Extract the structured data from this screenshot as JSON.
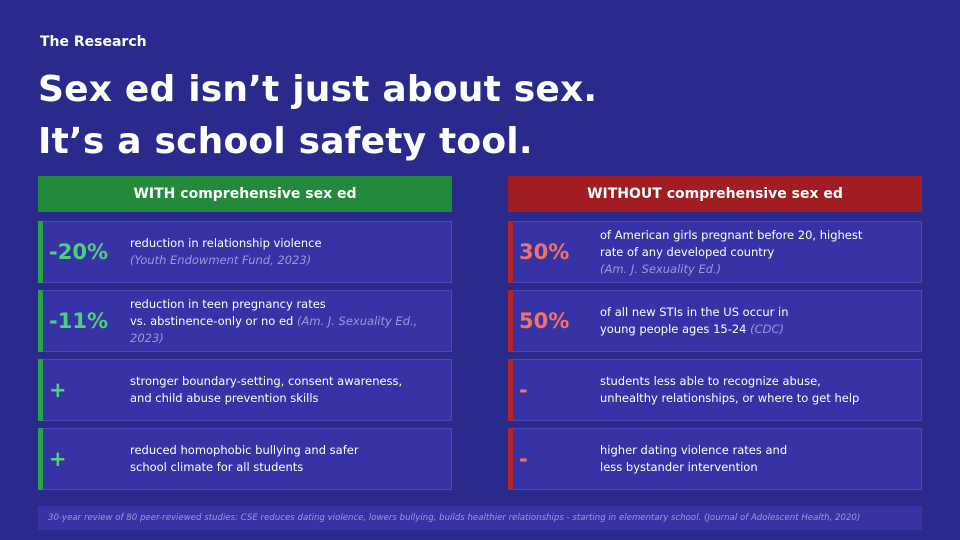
{
  "eyebrow": "The Research",
  "headline": {
    "line1": "Sex ed isn’t just about sex.",
    "line2": "It’s a school safety tool."
  },
  "with": {
    "header": "WITH comprehensive sex ed",
    "cards": [
      {
        "stat": "-20%",
        "line1": "reduction in relationship violence",
        "cite1": "(Youth Endowment Fund, 2023)"
      },
      {
        "stat": "-11%",
        "line1": "reduction in teen pregnancy rates",
        "line2": "vs. abstinence-only or no ed ",
        "cite2": "(Am. J. Sexuality Ed.,",
        "cite3": "2023)"
      },
      {
        "stat": "+",
        "line1": "stronger boundary-setting, consent awareness,",
        "line2": "and child abuse prevention skills"
      },
      {
        "stat": "+",
        "line1": "reduced homophobic bullying and safer",
        "line2": "school climate for all students"
      }
    ]
  },
  "without": {
    "header": "WITHOUT comprehensive sex ed",
    "cards": [
      {
        "stat": "30%",
        "line1": "of American girls pregnant before 20, highest",
        "line2": "rate of any developed country",
        "cite3": "(Am. J. Sexuality Ed.)"
      },
      {
        "stat": "50%",
        "line1": "of all new STIs in the US occur in",
        "line2": "young people ages 15-24 ",
        "cite2": "(CDC)"
      },
      {
        "stat": "-",
        "line1": "students less able to recognize abuse,",
        "line2": "unhealthy relationships, or where to get help"
      },
      {
        "stat": "-",
        "line1": "higher dating violence rates and",
        "line2": "less bystander intervention"
      }
    ]
  },
  "footnote": "30-year review of 80 peer-reviewed studies: CSE reduces dating violence, lowers bullying, builds healthier relationships - starting in elementary school.  (Journal of Adolescent Health, 2020)",
  "colors": {
    "background": "#2a2a8c",
    "card": "#3733a6",
    "with_accent": "#238a3c",
    "with_stat": "#4fd07a",
    "without_accent": "#a21d22",
    "without_stat": "#f07466",
    "citation": "#9a9ad8"
  }
}
